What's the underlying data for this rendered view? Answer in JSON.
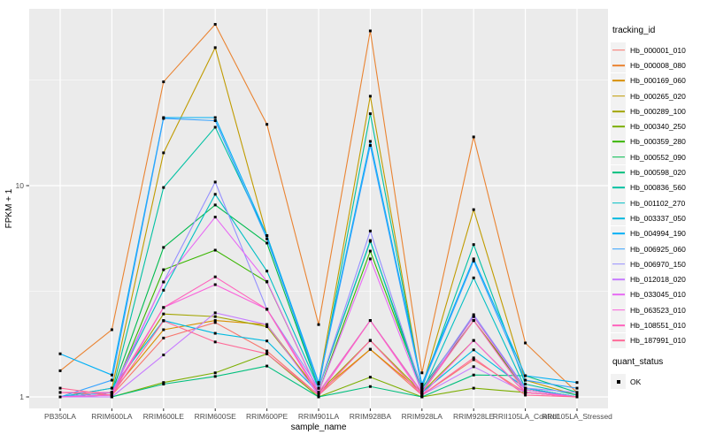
{
  "chart_data": {
    "type": "line",
    "title": "",
    "xlabel": "sample_name",
    "ylabel": "FPKM + 1",
    "y_scale": "log10",
    "y_ticks": [
      1,
      10
    ],
    "y_minor_gridlines": [
      3.1623,
      31.623
    ],
    "ylim": [
      0.88,
      68
    ],
    "grid": "on",
    "legend_position": "right",
    "point_shape": "filled-black-square",
    "x_categories": [
      "PB350LA",
      "RRIM600LA",
      "RRIM600LE",
      "RRIM600SE",
      "RRIM600PE",
      "RRIM901LA",
      "RRIM928BA",
      "RRIM928LA",
      "RRIM928LE",
      "RRII105LA_Control",
      "RRII105LA_Stressed"
    ],
    "series": [
      {
        "name": "Hb_000001_010",
        "color": "#F8766D",
        "values": [
          1.05,
          1.02,
          1.9,
          2.25,
          1.65,
          1.02,
          1.68,
          1.02,
          1.5,
          1.05,
          1.0
        ]
      },
      {
        "name": "Hb_000008_080",
        "color": "#EA8331",
        "values": [
          1.33,
          2.08,
          31,
          58,
          19.5,
          2.2,
          54,
          1.3,
          17,
          1.8,
          1.05
        ]
      },
      {
        "name": "Hb_000169_060",
        "color": "#D89000",
        "values": [
          1.0,
          1.05,
          2.08,
          2.3,
          2.2,
          1.05,
          1.68,
          1.05,
          2.3,
          1.1,
          1.0
        ]
      },
      {
        "name": "Hb_000265_020",
        "color": "#C09B00",
        "values": [
          1.0,
          1.1,
          14.3,
          45,
          5.8,
          1.15,
          26.5,
          1.1,
          7.7,
          1.2,
          1.02
        ]
      },
      {
        "name": "Hb_000289_100",
        "color": "#A3A500",
        "values": [
          1.0,
          1.05,
          2.47,
          2.4,
          2.15,
          1.05,
          1.85,
          1.05,
          1.85,
          1.05,
          1.0
        ]
      },
      {
        "name": "Hb_000340_250",
        "color": "#7CAE00",
        "values": [
          1.0,
          1.0,
          1.17,
          1.3,
          1.6,
          1.0,
          1.24,
          1.0,
          1.1,
          1.05,
          1.0
        ]
      },
      {
        "name": "Hb_000359_280",
        "color": "#39B600",
        "values": [
          1.0,
          1.02,
          4.0,
          4.95,
          3.5,
          1.05,
          4.9,
          1.08,
          2.3,
          1.08,
          1.0
        ]
      },
      {
        "name": "Hb_000552_090",
        "color": "#00BB4E",
        "values": [
          1.0,
          1.05,
          5.1,
          8.1,
          5.35,
          1.1,
          5.45,
          1.1,
          2.4,
          1.1,
          1.0
        ]
      },
      {
        "name": "Hb_000598_020",
        "color": "#00BF7D",
        "values": [
          1.0,
          1.0,
          1.15,
          1.25,
          1.4,
          1.0,
          1.12,
          1.0,
          1.27,
          1.26,
          1.05
        ]
      },
      {
        "name": "Hb_000836_560",
        "color": "#00C1A3",
        "values": [
          1.0,
          1.05,
          9.8,
          18.9,
          5.8,
          1.1,
          21.9,
          1.1,
          5.26,
          1.15,
          1.02
        ]
      },
      {
        "name": "Hb_001102_270",
        "color": "#00BFC4",
        "values": [
          1.0,
          1.05,
          3.2,
          9.1,
          3.94,
          1.1,
          5.5,
          1.05,
          3.66,
          1.1,
          1.0
        ]
      },
      {
        "name": "Hb_003337_050",
        "color": "#00BAE0",
        "values": [
          1.0,
          1.1,
          2.3,
          2.0,
          1.84,
          1.05,
          2.3,
          1.05,
          1.67,
          1.1,
          1.0
        ]
      },
      {
        "name": "Hb_004994_190",
        "color": "#00B0F6",
        "values": [
          1.6,
          1.27,
          21,
          21,
          5.8,
          1.17,
          16.2,
          1.15,
          4.5,
          1.26,
          1.17
        ]
      },
      {
        "name": "Hb_006925_060",
        "color": "#35A2FF",
        "values": [
          1.0,
          1.2,
          20.8,
          20.3,
          5.6,
          1.15,
          15.5,
          1.12,
          4.4,
          1.2,
          1.1
        ]
      },
      {
        "name": "Hb_006970_150",
        "color": "#9590FF",
        "values": [
          1.0,
          1.05,
          3.5,
          10.4,
          2.6,
          1.1,
          6.1,
          1.08,
          2.45,
          1.1,
          1.05
        ]
      },
      {
        "name": "Hb_012018_020",
        "color": "#C77CFF",
        "values": [
          1.0,
          1.0,
          1.58,
          2.5,
          2.2,
          1.02,
          1.85,
          1.02,
          1.39,
          1.05,
          1.0
        ]
      },
      {
        "name": "Hb_033045_010",
        "color": "#E76BF3",
        "values": [
          1.0,
          1.02,
          3.5,
          7.1,
          3.52,
          1.05,
          4.5,
          1.05,
          2.4,
          1.08,
          1.0
        ]
      },
      {
        "name": "Hb_063523_010",
        "color": "#FA62DB",
        "values": [
          1.0,
          1.02,
          2.65,
          3.4,
          2.6,
          1.02,
          2.3,
          1.02,
          1.85,
          1.05,
          1.0
        ]
      },
      {
        "name": "Hb_108551_010",
        "color": "#FF62BC",
        "values": [
          1.05,
          1.05,
          2.65,
          3.7,
          2.6,
          1.05,
          2.3,
          1.05,
          2.3,
          1.05,
          1.0
        ]
      },
      {
        "name": "Hb_187991_010",
        "color": "#FF6A98",
        "values": [
          1.1,
          1.02,
          2.29,
          1.82,
          1.6,
          1.02,
          1.85,
          1.02,
          1.53,
          1.02,
          1.0
        ]
      }
    ]
  },
  "legend": {
    "tracking_title": "tracking_id",
    "quant_title": "quant_status",
    "quant_items": [
      {
        "label": "OK"
      }
    ]
  },
  "theme": {
    "panel_bg": "#EBEBEB",
    "grid_color": "#FFFFFF",
    "tick_label_color": "#4D4D4D",
    "tick_mark_color": "#333333",
    "axis_title_color": "#000000",
    "legend_key_bg": "#F2F2F2",
    "point_color": "#000000"
  }
}
